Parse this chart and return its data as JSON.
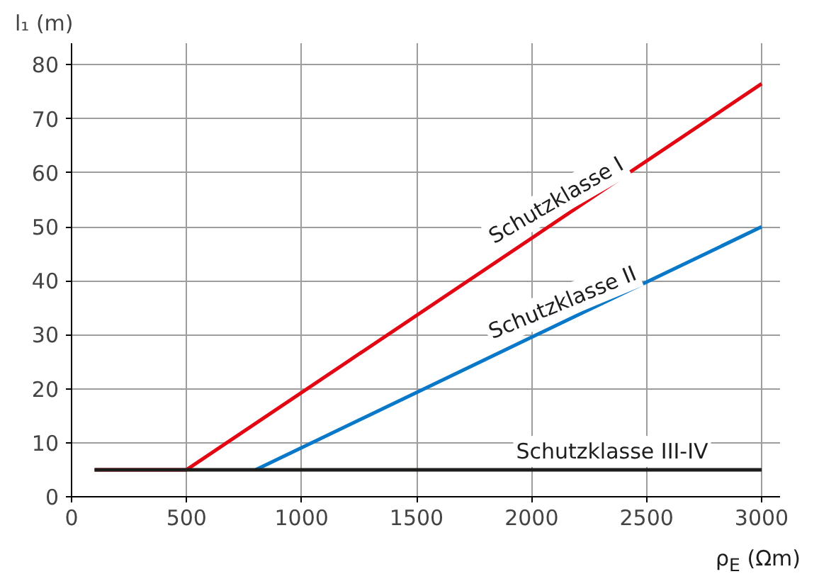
{
  "chart_data": {
    "type": "line",
    "xlabel": "ρ$_{E}$ (Ωm)",
    "ylabel": "l₁ (m)",
    "xlim": [
      0,
      3080
    ],
    "ylim": [
      0,
      84
    ],
    "xticks": [
      0,
      500,
      1000,
      1500,
      2000,
      2500,
      3000
    ],
    "yticks": [
      0,
      10,
      20,
      30,
      40,
      50,
      60,
      70,
      80
    ],
    "grid": true,
    "line_style": "solid",
    "marker": "none",
    "series": [
      {
        "color": "#e30613",
        "x": [
          100,
          500,
          3000
        ],
        "values": [
          5,
          5,
          76.5
        ]
      },
      {
        "color": "#0a78c8",
        "x": [
          800,
          3000
        ],
        "values": [
          5,
          50
        ]
      },
      {
        "color": "#1d1d1b",
        "x": [
          100,
          3000
        ],
        "values": [
          5,
          5
        ]
      }
    ],
    "annotations": [
      {
        "text": "Schutzklasse I",
        "x": 2140,
        "y": 51.9
      },
      {
        "text": "Schutzklasse II",
        "x": 2160,
        "y": 32.8
      },
      {
        "text": "Schutzklasse III-IV",
        "x": 2350,
        "y": 5
      }
    ]
  }
}
